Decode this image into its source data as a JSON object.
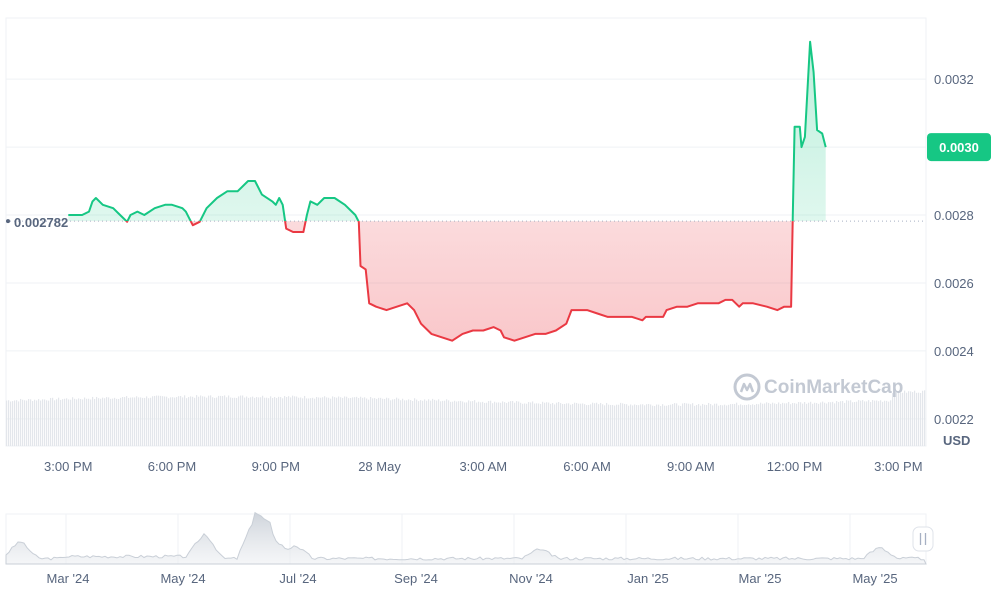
{
  "chart_data": {
    "type": "area",
    "currency": "USD",
    "reference_price": 0.002782,
    "reference_label": "0.002782",
    "current_price": 0.003,
    "current_label": "0.0030",
    "y_ticks": [
      {
        "value": 0.0032,
        "label": "0.0032"
      },
      {
        "value": 0.003,
        "label": "0.0030"
      },
      {
        "value": 0.0028,
        "label": "0.0028"
      },
      {
        "value": 0.0026,
        "label": "0.0026"
      },
      {
        "value": 0.0024,
        "label": "0.0024"
      },
      {
        "value": 0.0022,
        "label": "0.0022"
      }
    ],
    "x_ticks": [
      "3:00 PM",
      "6:00 PM",
      "9:00 PM",
      "28 May",
      "3:00 AM",
      "6:00 AM",
      "9:00 AM",
      "12:00 PM",
      "3:00 PM"
    ],
    "x_range_hours": [
      -1.8,
      24.8
    ],
    "y_range": [
      0.00212,
      0.00338
    ],
    "colors": {
      "up": "#16c784",
      "down": "#ea3943",
      "grid": "#eff2f5",
      "text": "#58667e"
    },
    "price_series": [
      [
        0.0,
        0.0028
      ],
      [
        0.4,
        0.0028
      ],
      [
        0.6,
        0.00281
      ],
      [
        0.7,
        0.00284
      ],
      [
        0.8,
        0.00285
      ],
      [
        1.0,
        0.00283
      ],
      [
        1.3,
        0.00282
      ],
      [
        1.5,
        0.0028
      ],
      [
        1.6,
        0.00279
      ],
      [
        1.7,
        0.00278
      ],
      [
        1.8,
        0.0028
      ],
      [
        2.0,
        0.00281
      ],
      [
        2.2,
        0.0028
      ],
      [
        2.5,
        0.00282
      ],
      [
        2.8,
        0.00283
      ],
      [
        3.0,
        0.00283
      ],
      [
        3.3,
        0.00282
      ],
      [
        3.4,
        0.00281
      ],
      [
        3.5,
        0.00279
      ],
      [
        3.6,
        0.00277
      ],
      [
        3.8,
        0.00278
      ],
      [
        4.0,
        0.00282
      ],
      [
        4.3,
        0.00285
      ],
      [
        4.6,
        0.00287
      ],
      [
        4.9,
        0.00287
      ],
      [
        5.2,
        0.0029
      ],
      [
        5.4,
        0.0029
      ],
      [
        5.6,
        0.00286
      ],
      [
        5.9,
        0.00284
      ],
      [
        6.0,
        0.00283
      ],
      [
        6.1,
        0.00285
      ],
      [
        6.2,
        0.00283
      ],
      [
        6.3,
        0.00276
      ],
      [
        6.5,
        0.00275
      ],
      [
        6.7,
        0.00275
      ],
      [
        6.8,
        0.00275
      ],
      [
        6.9,
        0.0028
      ],
      [
        7.0,
        0.00284
      ],
      [
        7.2,
        0.00283
      ],
      [
        7.4,
        0.00285
      ],
      [
        7.7,
        0.00285
      ],
      [
        8.0,
        0.00283
      ],
      [
        8.3,
        0.0028
      ],
      [
        8.4,
        0.00278
      ],
      [
        8.45,
        0.00265
      ],
      [
        8.6,
        0.00264
      ],
      [
        8.7,
        0.00254
      ],
      [
        8.9,
        0.00253
      ],
      [
        9.2,
        0.00252
      ],
      [
        9.5,
        0.00253
      ],
      [
        9.8,
        0.00254
      ],
      [
        10.0,
        0.00252
      ],
      [
        10.2,
        0.00248
      ],
      [
        10.5,
        0.00245
      ],
      [
        10.8,
        0.00244
      ],
      [
        11.1,
        0.00243
      ],
      [
        11.4,
        0.00245
      ],
      [
        11.7,
        0.00246
      ],
      [
        12.0,
        0.00246
      ],
      [
        12.3,
        0.00247
      ],
      [
        12.5,
        0.00246
      ],
      [
        12.6,
        0.00244
      ],
      [
        12.9,
        0.00243
      ],
      [
        13.2,
        0.00244
      ],
      [
        13.5,
        0.00245
      ],
      [
        13.8,
        0.00245
      ],
      [
        14.1,
        0.00246
      ],
      [
        14.4,
        0.00248
      ],
      [
        14.55,
        0.00252
      ],
      [
        14.7,
        0.00252
      ],
      [
        15.0,
        0.00252
      ],
      [
        15.3,
        0.00251
      ],
      [
        15.6,
        0.0025
      ],
      [
        15.9,
        0.0025
      ],
      [
        16.3,
        0.0025
      ],
      [
        16.6,
        0.00249
      ],
      [
        16.7,
        0.0025
      ],
      [
        16.9,
        0.0025
      ],
      [
        17.2,
        0.0025
      ],
      [
        17.3,
        0.00252
      ],
      [
        17.6,
        0.00253
      ],
      [
        17.9,
        0.00253
      ],
      [
        18.2,
        0.00254
      ],
      [
        18.5,
        0.00254
      ],
      [
        18.8,
        0.00254
      ],
      [
        19.0,
        0.00255
      ],
      [
        19.2,
        0.00255
      ],
      [
        19.4,
        0.00253
      ],
      [
        19.5,
        0.00254
      ],
      [
        19.8,
        0.00254
      ],
      [
        20.2,
        0.00253
      ],
      [
        20.5,
        0.00252
      ],
      [
        20.7,
        0.00253
      ],
      [
        20.9,
        0.00253
      ],
      [
        20.95,
        0.0028
      ],
      [
        21.0,
        0.00306
      ],
      [
        21.15,
        0.00306
      ],
      [
        21.2,
        0.003
      ],
      [
        21.3,
        0.00303
      ],
      [
        21.45,
        0.00331
      ],
      [
        21.55,
        0.00322
      ],
      [
        21.65,
        0.00305
      ],
      [
        21.8,
        0.00304
      ],
      [
        21.9,
        0.003
      ]
    ],
    "overview_x_ticks": [
      "Mar '24",
      "May '24",
      "Jul '24",
      "Sep '24",
      "Nov '24",
      "Jan '25",
      "Mar '25",
      "May '25"
    ]
  },
  "watermark": {
    "text": "CoinMarketCap",
    "icon": "coinmarketcap-logo-icon"
  },
  "ui": {
    "range_handle": "range-handle-icon"
  }
}
